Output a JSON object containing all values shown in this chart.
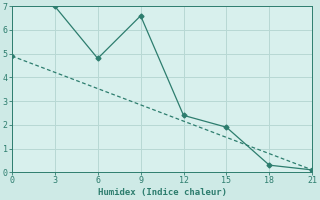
{
  "line1_x": [
    3,
    6,
    9,
    12,
    15,
    18,
    21
  ],
  "line1_y": [
    7.0,
    4.8,
    6.6,
    2.4,
    1.9,
    0.3,
    0.1
  ],
  "line2_x": [
    0,
    21
  ],
  "line2_y": [
    4.9,
    0.1
  ],
  "line_color": "#2d7d6e",
  "bg_color": "#ceeae6",
  "plot_bg": "#d8f0ed",
  "grid_color": "#b8d8d4",
  "xlabel": "Humidex (Indice chaleur)",
  "xlim": [
    0,
    21
  ],
  "ylim": [
    0,
    7
  ],
  "xticks": [
    0,
    3,
    6,
    9,
    12,
    15,
    18,
    21
  ],
  "yticks": [
    0,
    1,
    2,
    3,
    4,
    5,
    6,
    7
  ]
}
